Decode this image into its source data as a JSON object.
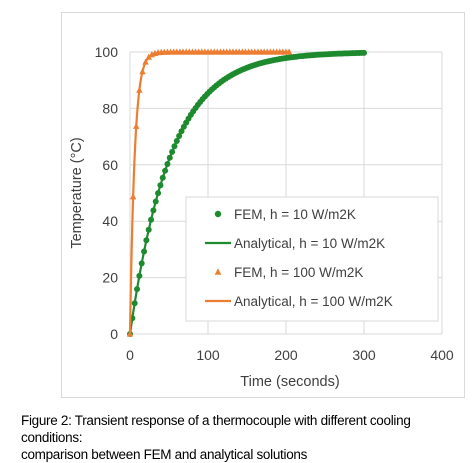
{
  "chart_data": {
    "type": "scatter",
    "xlabel": "Time (seconds)",
    "ylabel": "Temperature (°C)",
    "xlim": [
      0,
      400
    ],
    "ylim": [
      0,
      100
    ],
    "xticks": [
      0,
      100,
      200,
      300,
      400
    ],
    "yticks": [
      0,
      20,
      40,
      60,
      80,
      100
    ],
    "grid": true,
    "legend_position": "center-right",
    "series": [
      {
        "name": "FEM, h = 10 W/m2K",
        "kind": "markers",
        "marker": "circle",
        "color": "#1e8a2e",
        "x_start": 0,
        "x_end": 300,
        "x_step": 3,
        "final_value": 100,
        "time_constant": 52
      },
      {
        "name": "Analytical, h = 10 W/m2K",
        "kind": "line",
        "color": "#1e8a2e",
        "x_start": 0,
        "x_end": 300,
        "final_value": 100,
        "time_constant": 52
      },
      {
        "name": "FEM, h = 100 W/m2K",
        "kind": "markers",
        "marker": "triangle",
        "color": "#ed7d31",
        "x_start": 0,
        "x_end": 205,
        "x_step": 4,
        "final_value": 100,
        "time_constant": 6
      },
      {
        "name": "Analytical, h = 100 W/m2K",
        "kind": "line",
        "color": "#ed7d31",
        "x_start": 0,
        "x_end": 205,
        "final_value": 100,
        "time_constant": 6
      }
    ]
  },
  "caption": {
    "line1": "Figure 2: Transient response of a thermocouple with different cooling conditions:",
    "line2": "comparison between FEM and analytical solutions"
  }
}
